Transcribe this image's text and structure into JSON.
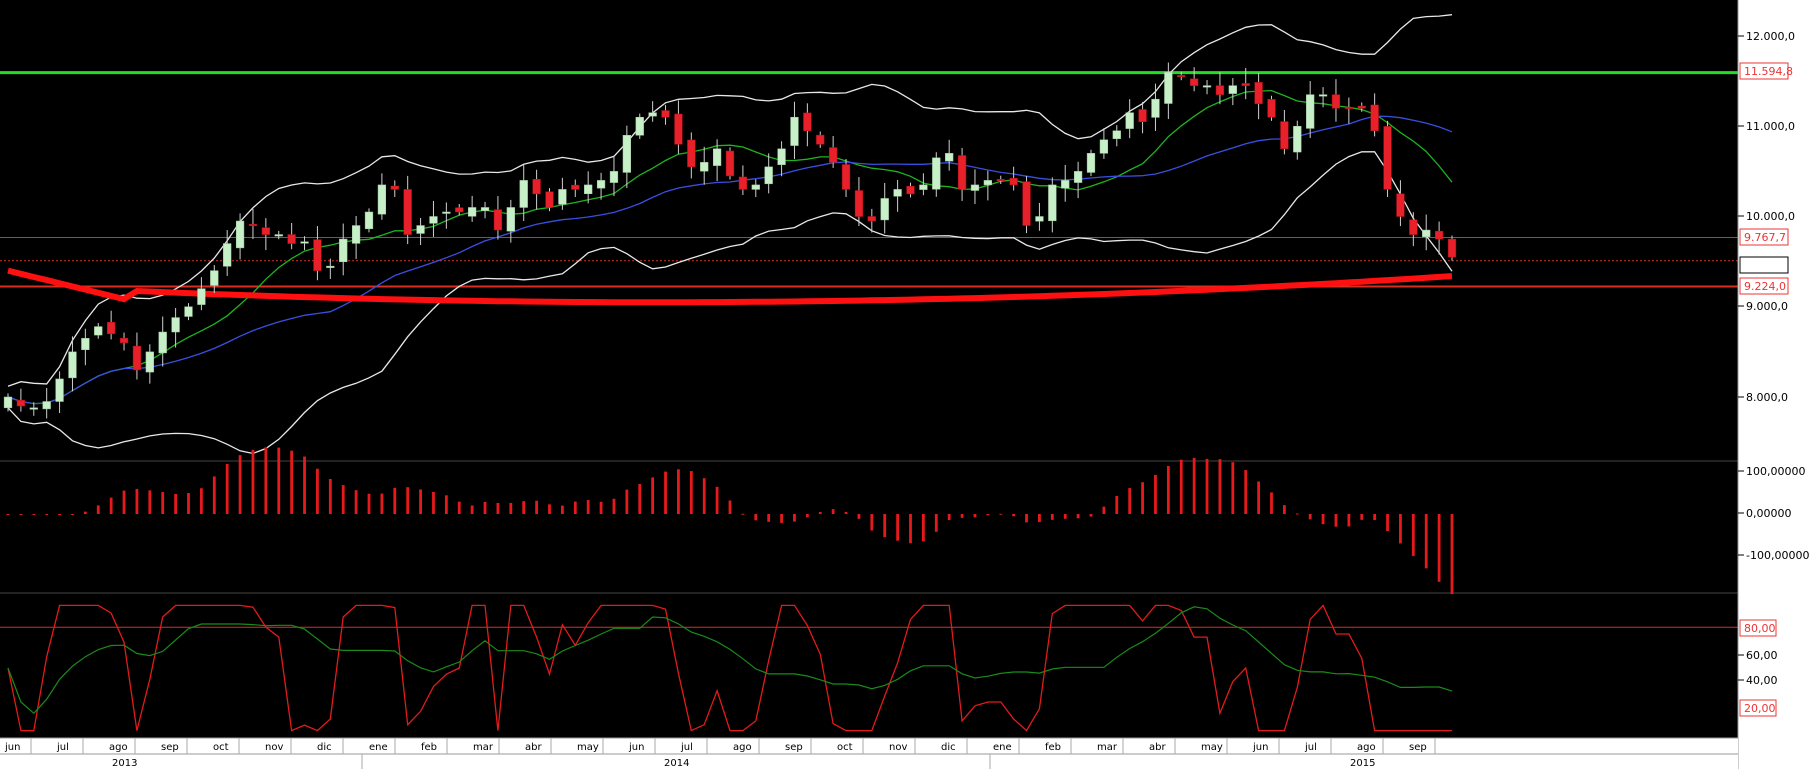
{
  "colors": {
    "background": "#000000",
    "bull_candle": "#c8f0c8",
    "bear_candle": "#e8202a",
    "wick": "#d0d0d0",
    "bollinger": "#e8e8e8",
    "ma_fast": "#1fb31f",
    "ma_slow": "#3a4fe0",
    "ma_long": "#ff1010",
    "resistance": "#22dd22",
    "level_line": "#d83020",
    "macd_bar": "#e61a1a",
    "stoch_k": "#e21b1b",
    "stoch_d": "#1a8a1a",
    "axis_panel": "#ffffff"
  },
  "axis_labels": {
    "price": [
      "12.000,0",
      "11.000,0",
      "10.000,0",
      "9.000,0",
      "8.000,0"
    ],
    "macd": [
      "100,00000",
      "0,00000",
      "-100,00000"
    ],
    "stoch": [
      "60,00",
      "40,00"
    ]
  },
  "price_tags": {
    "resistance": "11.594,8",
    "level_upper": "9.767,7",
    "level_lower": "9.224,0",
    "stoch_high": "80,00",
    "stoch_low": "20,00"
  },
  "time_axis": {
    "months": [
      "jun",
      "jul",
      "ago",
      "sep",
      "oct",
      "nov",
      "dic",
      "ene",
      "feb",
      "mar",
      "abr",
      "may",
      "jun",
      "jul",
      "ago",
      "sep",
      "oct",
      "nov",
      "dic",
      "ene",
      "feb",
      "mar",
      "abr",
      "may",
      "jun",
      "jul",
      "ago",
      "sep"
    ],
    "years": [
      "2013",
      "2014",
      "2015"
    ]
  },
  "chart_data": {
    "type": "candlestick",
    "panels": [
      "price",
      "macd_histogram",
      "stochastic"
    ],
    "price_ylim": [
      7400,
      12200
    ],
    "levels": {
      "resistance": 11594.8,
      "upper": 9767.7,
      "lower": 9224.0,
      "current": 9510
    },
    "weekly_close": [
      8000,
      7900,
      7880,
      7950,
      8200,
      8500,
      8650,
      8780,
      8700,
      8600,
      8300,
      8500,
      8720,
      8880,
      9000,
      9200,
      9400,
      9700,
      9950,
      9900,
      9800,
      9800,
      9700,
      9720,
      9400,
      9450,
      9750,
      9900,
      10050,
      10350,
      10300,
      9800,
      9900,
      10000,
      10050,
      10050,
      10100,
      10100,
      9850,
      10100,
      10400,
      10250,
      10100,
      10300,
      10300,
      10350,
      10400,
      10500,
      10900,
      11100,
      11150,
      11100,
      10800,
      10550,
      10600,
      10750,
      10450,
      10300,
      10350,
      10550,
      10750,
      11100,
      10950,
      10800,
      10600,
      10300,
      10000,
      9950,
      10200,
      10300,
      10250,
      10350,
      10650,
      10700,
      10300,
      10350,
      10400,
      10400,
      10350,
      9900,
      10000,
      10350,
      10400,
      10500,
      10700,
      10850,
      10950,
      11150,
      11050,
      11300,
      11600,
      11550,
      11450,
      11450,
      11350,
      11450,
      11450,
      11250,
      11100,
      10750,
      11000,
      11350,
      11350,
      11200,
      11200,
      11200,
      10950,
      10300,
      10000,
      9800,
      9850,
      9750,
      9550
    ]
  }
}
